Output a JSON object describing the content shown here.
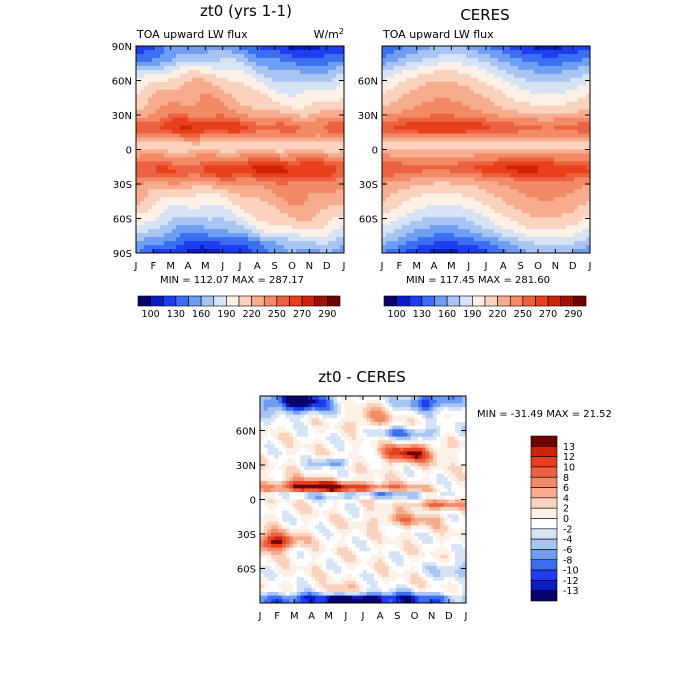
{
  "months": [
    "J",
    "F",
    "M",
    "A",
    "M",
    "J",
    "J",
    "A",
    "S",
    "O",
    "N",
    "D",
    "J"
  ],
  "palette_abs": [
    "#08026e",
    "#0a1ec4",
    "#1e3df0",
    "#3c6ef2",
    "#6e9ef2",
    "#a8c4f2",
    "#d5e3f5",
    "#fdf0e6",
    "#fbd2bd",
    "#f7ad8d",
    "#f28a66",
    "#ec6240",
    "#e8401c",
    "#cc2508",
    "#a01302",
    "#6e0400"
  ],
  "palette_diff": [
    "#08026e",
    "#0a1ec4",
    "#1e3df0",
    "#3c6ef2",
    "#6e9ef2",
    "#a8c4f2",
    "#d5e3f5",
    "#ffffff",
    "#fdf0e6",
    "#fbd2bd",
    "#f7ad8d",
    "#f28a66",
    "#ec6240",
    "#e8401c",
    "#cc2508",
    "#6e0400"
  ],
  "chart_data": [
    {
      "type": "heatmap",
      "title": "zt0 (yrs 1-1)",
      "subtitle_left": "TOA upward LW flux",
      "units_base": "W/m",
      "units_exp": "2",
      "xlabel": "",
      "ylabel": "",
      "x_ticks": [
        "J",
        "F",
        "M",
        "A",
        "M",
        "J",
        "J",
        "A",
        "S",
        "O",
        "N",
        "D",
        "J"
      ],
      "y_ticks": [
        "90N",
        "60N",
        "30N",
        "0",
        "30S",
        "60S",
        "90S"
      ],
      "stats": "MIN = 112.07 MAX = 287.17",
      "min": 112.07,
      "max": 287.17,
      "colorbar_ticks": [
        "100",
        "130",
        "160",
        "190",
        "220",
        "250",
        "270",
        "290"
      ]
    },
    {
      "type": "heatmap",
      "title": "CERES",
      "subtitle_left": "TOA upward LW flux",
      "x_ticks": [
        "J",
        "F",
        "M",
        "A",
        "M",
        "J",
        "J",
        "A",
        "S",
        "O",
        "N",
        "D",
        "J"
      ],
      "y_ticks": [
        "60N",
        "30N",
        "0",
        "30S",
        "60S"
      ],
      "stats": "MIN = 117.45 MAX = 281.60",
      "min": 117.45,
      "max": 281.6,
      "colorbar_ticks": [
        "100",
        "130",
        "160",
        "190",
        "220",
        "250",
        "270",
        "290"
      ]
    },
    {
      "type": "heatmap",
      "title": "zt0 - CERES",
      "x_ticks": [
        "J",
        "F",
        "M",
        "A",
        "M",
        "J",
        "J",
        "A",
        "S",
        "O",
        "N",
        "D",
        "J"
      ],
      "y_ticks": [
        "60N",
        "30N",
        "0",
        "30S",
        "60S"
      ],
      "stats": "MIN = -31.49 MAX =  21.52",
      "min": -31.49,
      "max": 21.52,
      "colorbar_labels": [
        "13",
        "12",
        "10",
        "8",
        "6",
        "4",
        "2",
        "0",
        "-2",
        "-4",
        "-6",
        "-8",
        "-10",
        "-12",
        "-13"
      ]
    }
  ]
}
